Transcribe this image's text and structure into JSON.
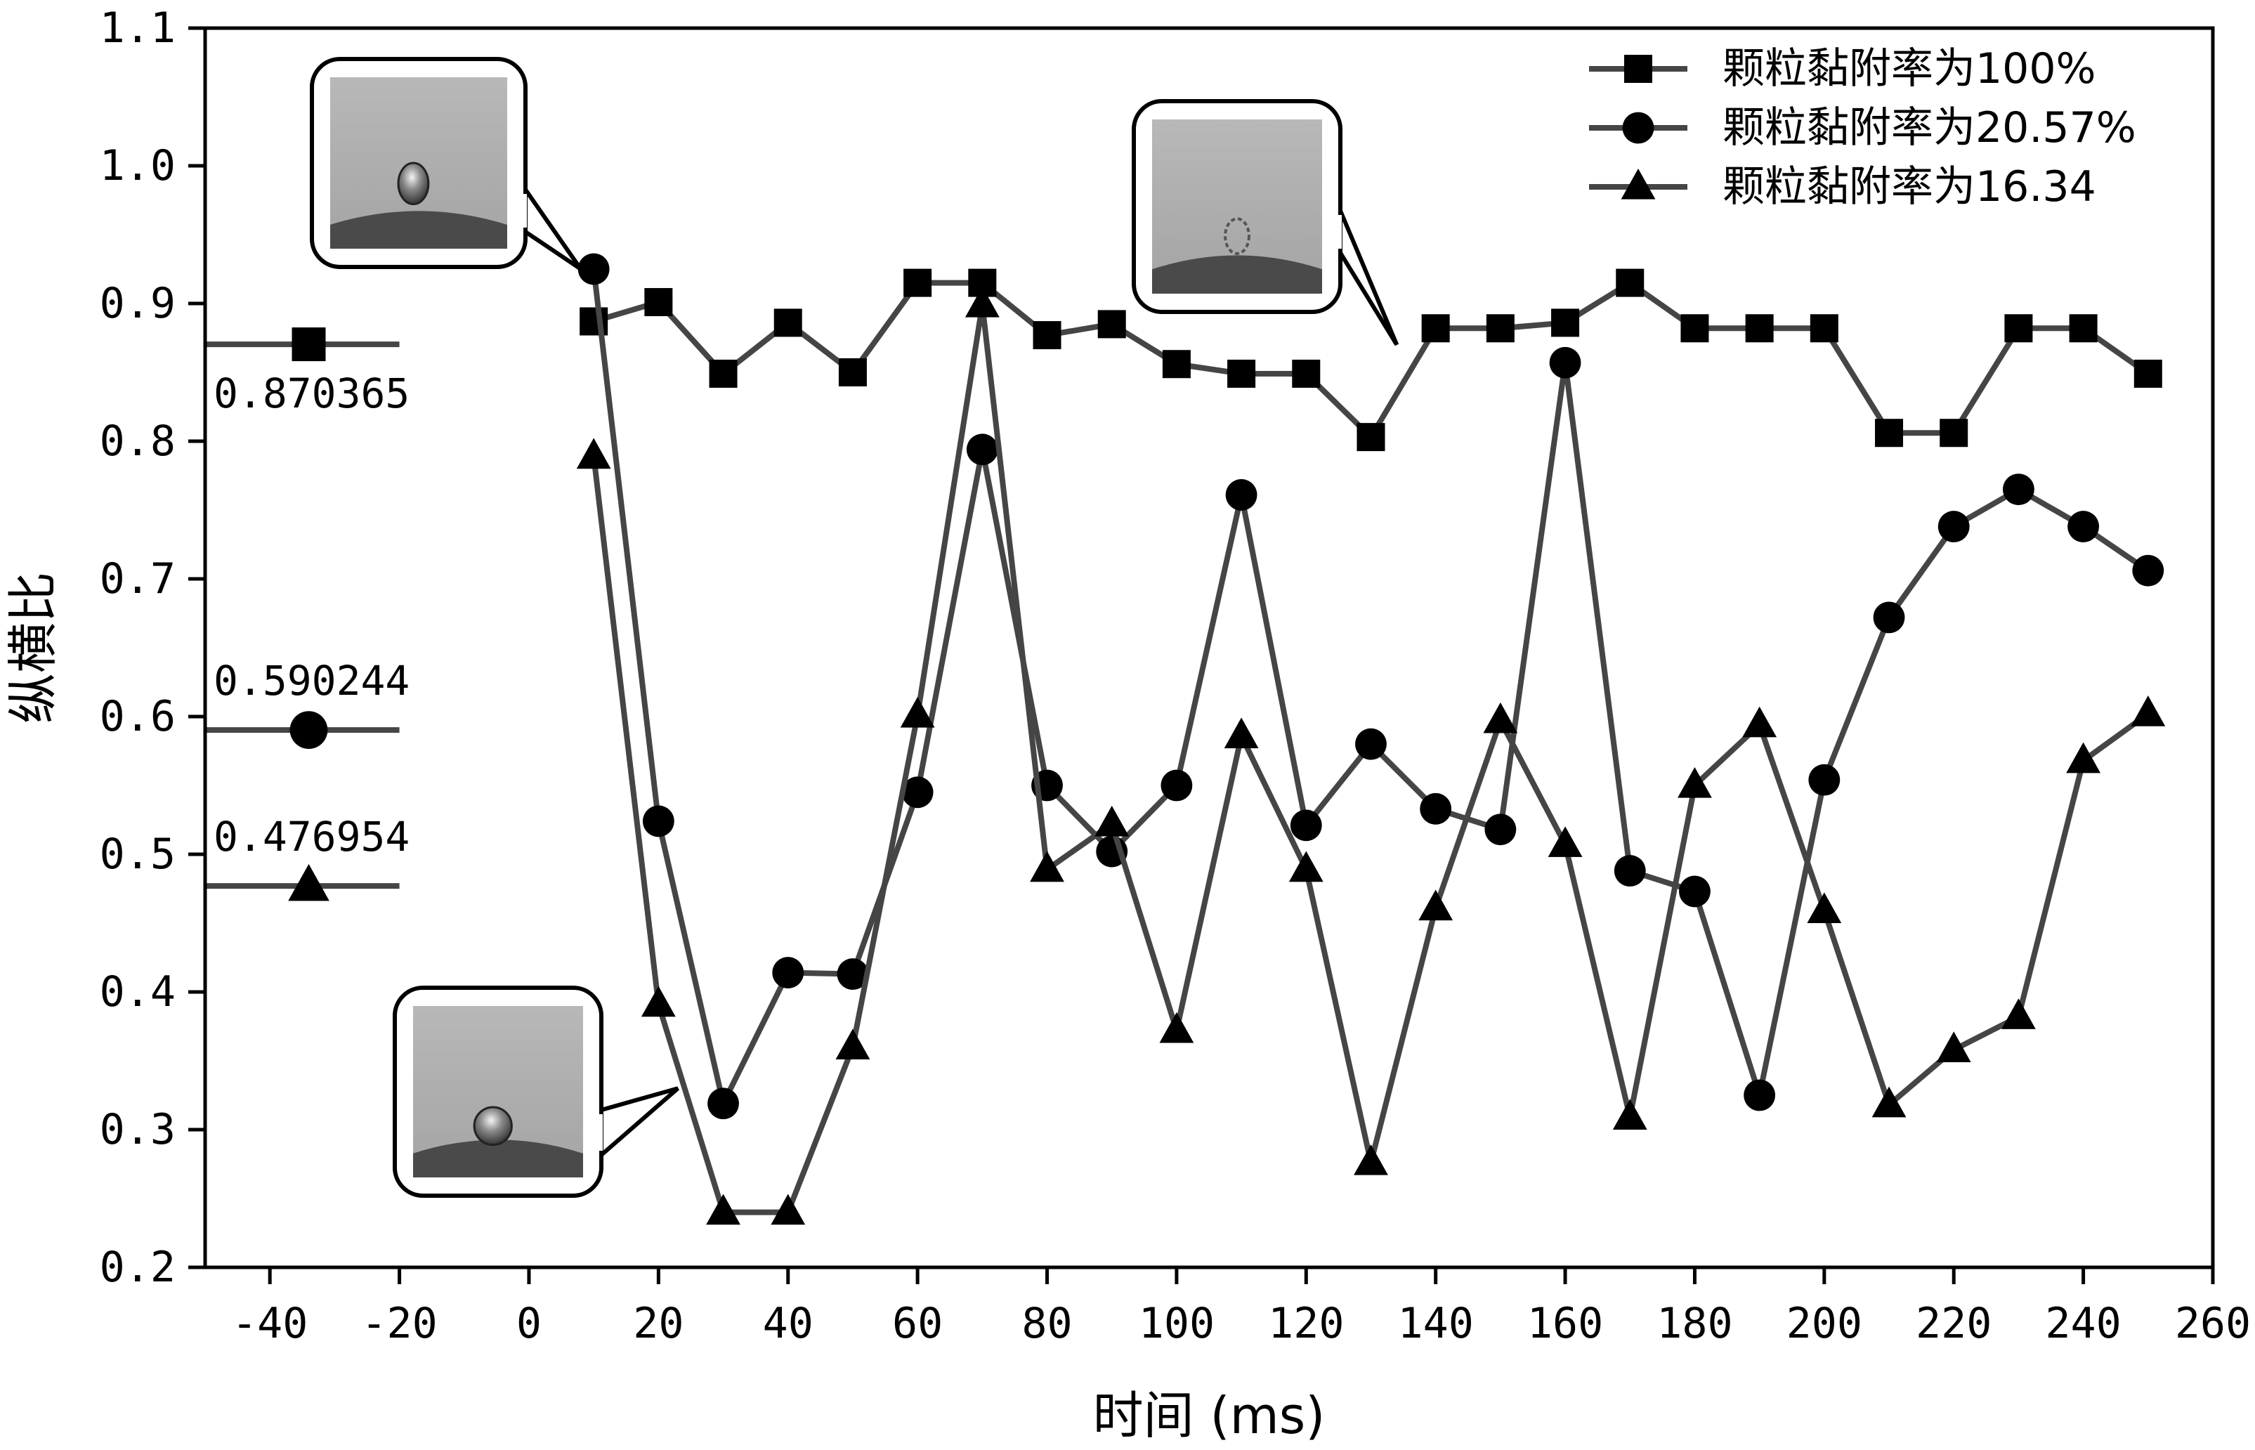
{
  "chart_data": {
    "type": "line",
    "xlabel": "时间 (ms)",
    "ylabel": "纵横比",
    "xlim": [
      -50,
      260
    ],
    "ylim": [
      0.2,
      1.1
    ],
    "xticks": [
      "-40",
      "-20",
      "0",
      "20",
      "40",
      "60",
      "80",
      "100",
      "120",
      "140",
      "160",
      "180",
      "200",
      "220",
      "240",
      "260"
    ],
    "yticks": [
      "0.2",
      "0.3",
      "0.4",
      "0.5",
      "0.6",
      "0.7",
      "0.8",
      "0.9",
      "1.0",
      "1.1"
    ],
    "legend_position": "top-right",
    "series_color": "#454545",
    "x": [
      10,
      20,
      30,
      40,
      50,
      60,
      70,
      80,
      90,
      100,
      110,
      120,
      130,
      140,
      150,
      160,
      170,
      180,
      190,
      200,
      210,
      220,
      230,
      240,
      250
    ],
    "series": [
      {
        "name": "颗粒黏附率为100%",
        "marker": "square",
        "values": [
          0.887,
          0.901,
          0.849,
          0.886,
          0.85,
          0.915,
          0.915,
          0.877,
          0.885,
          0.856,
          0.849,
          0.849,
          0.803,
          0.882,
          0.882,
          0.886,
          0.915,
          0.882,
          0.882,
          0.882,
          0.806,
          0.806,
          0.882,
          0.882,
          0.849
        ]
      },
      {
        "name": "颗粒黏附率为20.57%",
        "marker": "circle",
        "values": [
          0.925,
          0.524,
          0.319,
          0.414,
          0.413,
          0.545,
          0.794,
          0.55,
          0.502,
          0.55,
          0.761,
          0.521,
          0.58,
          0.533,
          0.518,
          0.857,
          0.488,
          0.473,
          0.325,
          0.554,
          0.672,
          0.738,
          0.765,
          0.738,
          0.706
        ]
      },
      {
        "name": "颗粒黏附率为16.34",
        "marker": "triangle",
        "values": [
          0.789,
          0.391,
          0.24,
          0.24,
          0.36,
          0.601,
          0.899,
          0.489,
          0.522,
          0.372,
          0.586,
          0.489,
          0.276,
          0.461,
          0.597,
          0.507,
          0.309,
          0.55,
          0.594,
          0.459,
          0.318,
          0.358,
          0.382,
          0.568,
          0.602
        ]
      }
    ],
    "reference_markers": [
      {
        "series": "颗粒黏附率为100%",
        "x": -34,
        "value": 0.870365,
        "label": "0.870365",
        "label_side": "below"
      },
      {
        "series": "颗粒黏附率为20.57%",
        "x": -34,
        "value": 0.590244,
        "label": "0.590244",
        "label_side": "above"
      },
      {
        "series": "颗粒黏附率为16.34",
        "x": -34,
        "value": 0.476954,
        "label": "0.476954",
        "label_side": "above"
      }
    ]
  },
  "insets": [
    {
      "name": "droplet-photo-initial",
      "description": "droplet-photo",
      "pointer_x": 8,
      "pointer_y": 0.925
    },
    {
      "name": "droplet-photo-minimum",
      "description": "droplet-photo",
      "pointer_x": 23,
      "pointer_y": 0.33
    },
    {
      "name": "droplet-photo-rebound",
      "description": "droplet-photo",
      "pointer_x": 134,
      "pointer_y": 0.87
    }
  ]
}
